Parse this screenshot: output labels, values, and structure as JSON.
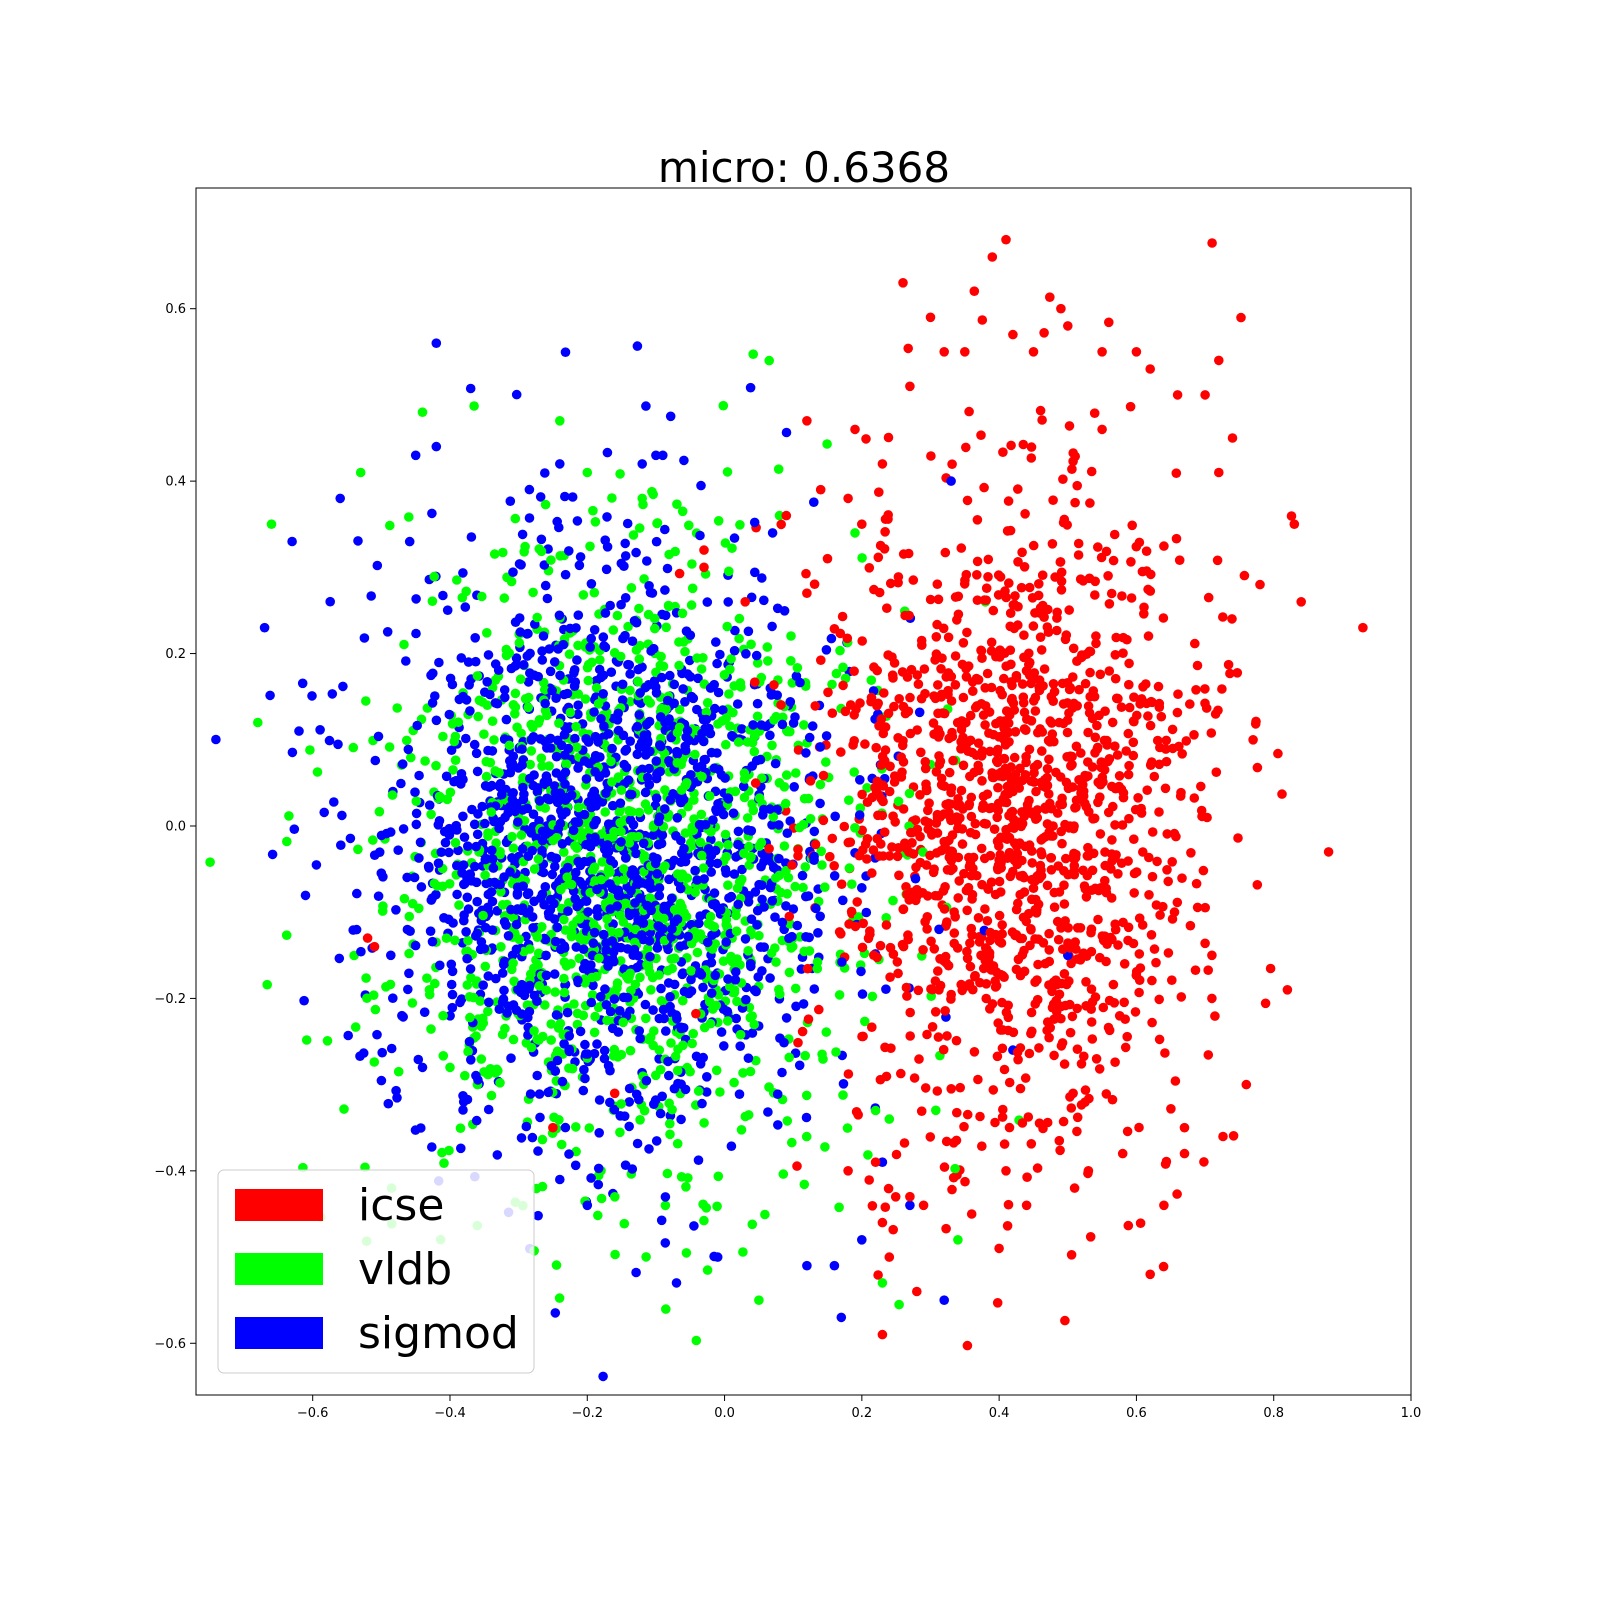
{
  "chart_data": {
    "type": "scatter",
    "title": "micro: 0.6368",
    "xlabel": "",
    "ylabel": "",
    "xlim": [
      -0.77,
      1.0
    ],
    "ylim": [
      -0.66,
      0.74
    ],
    "xticks": [
      -0.6,
      -0.4,
      -0.2,
      0.0,
      0.2,
      0.4,
      0.6,
      0.8,
      1.0
    ],
    "yticks": [
      -0.6,
      -0.4,
      -0.2,
      0.0,
      0.2,
      0.4,
      0.6
    ],
    "xtick_labels": [
      "−0.6",
      "−0.4",
      "−0.2",
      "0.0",
      "0.2",
      "0.4",
      "0.6",
      "0.8",
      "1.0"
    ],
    "ytick_labels": [
      "−0.6",
      "−0.4",
      "−0.2",
      "0.0",
      "0.2",
      "0.4",
      "0.6"
    ],
    "grid": false,
    "legend_position": "bottom-left",
    "series": [
      {
        "name": "icse",
        "color": "#ff0000",
        "points": [
          [
            0.39,
            0.66
          ],
          [
            0.41,
            0.68
          ],
          [
            0.26,
            0.63
          ],
          [
            0.3,
            0.59
          ],
          [
            0.49,
            0.6
          ],
          [
            0.5,
            0.58
          ],
          [
            0.42,
            0.57
          ],
          [
            0.45,
            0.55
          ],
          [
            0.55,
            0.55
          ],
          [
            0.6,
            0.55
          ],
          [
            0.62,
            0.53
          ],
          [
            0.72,
            0.54
          ],
          [
            0.66,
            0.5
          ],
          [
            0.7,
            0.5
          ],
          [
            0.74,
            0.45
          ],
          [
            0.72,
            0.41
          ],
          [
            0.55,
            0.46
          ],
          [
            0.35,
            0.55
          ],
          [
            0.32,
            0.55
          ],
          [
            0.27,
            0.51
          ],
          [
            0.19,
            0.46
          ],
          [
            0.12,
            0.47
          ],
          [
            0.14,
            0.39
          ],
          [
            0.93,
            0.23
          ],
          [
            0.84,
            0.26
          ],
          [
            0.83,
            0.35
          ],
          [
            0.78,
            0.28
          ],
          [
            0.77,
            0.1
          ],
          [
            0.88,
            -0.03
          ],
          [
            0.82,
            -0.19
          ],
          [
            0.76,
            -0.3
          ],
          [
            0.71,
            -0.15
          ],
          [
            0.71,
            -0.2
          ],
          [
            0.67,
            -0.35
          ],
          [
            0.67,
            -0.38
          ],
          [
            0.64,
            -0.44
          ],
          [
            0.62,
            -0.52
          ],
          [
            0.58,
            -0.38
          ],
          [
            0.53,
            -0.4
          ],
          [
            0.51,
            -0.42
          ],
          [
            0.44,
            -0.44
          ],
          [
            0.41,
            -0.4
          ],
          [
            0.4,
            -0.49
          ],
          [
            0.36,
            -0.45
          ],
          [
            0.29,
            -0.44
          ],
          [
            0.28,
            -0.54
          ],
          [
            0.23,
            -0.59
          ],
          [
            0.23,
            -0.46
          ],
          [
            0.24,
            -0.5
          ],
          [
            0.27,
            -0.43
          ],
          [
            0.22,
            -0.39
          ],
          [
            0.18,
            -0.4
          ],
          [
            -0.52,
            -0.13
          ],
          [
            -0.51,
            -0.14
          ],
          [
            -0.25,
            -0.35
          ],
          [
            -0.16,
            -0.31
          ],
          [
            -0.03,
            0.32
          ],
          [
            -0.03,
            0.3
          ],
          [
            0.03,
            0.26
          ],
          [
            0.12,
            0.27
          ],
          [
            0.15,
            0.31
          ],
          [
            0.09,
            0.36
          ],
          [
            0.18,
            0.38
          ],
          [
            0.2,
            0.35
          ],
          [
            0.23,
            0.42
          ]
        ],
        "cluster": {
          "center": [
            0.42,
            0.02
          ],
          "spread": [
            0.14,
            0.19
          ],
          "count": 1450,
          "seed": 11
        }
      },
      {
        "name": "vldb",
        "color": "#00ff00",
        "points": [
          [
            -0.44,
            0.48
          ],
          [
            -0.24,
            0.47
          ],
          [
            -0.66,
            0.35
          ],
          [
            -0.68,
            0.12
          ],
          [
            -0.53,
            0.41
          ],
          [
            -0.2,
            0.41
          ],
          [
            -0.12,
            0.38
          ],
          [
            0.08,
            0.36
          ],
          [
            0.05,
            -0.55
          ],
          [
            0.23,
            -0.53
          ],
          [
            0.34,
            -0.48
          ],
          [
            -0.43,
            -0.19
          ],
          [
            -0.4,
            -0.28
          ],
          [
            -0.41,
            -0.22
          ],
          [
            -0.36,
            -0.3
          ],
          [
            0.22,
            -0.33
          ],
          [
            0.24,
            -0.34
          ],
          [
            0.19,
            0.34
          ],
          [
            0.38,
            0.26
          ]
        ],
        "cluster": {
          "center": [
            -0.15,
            -0.05
          ],
          "spread": [
            0.17,
            0.18
          ],
          "count": 1350,
          "seed": 23
        }
      },
      {
        "name": "sigmod",
        "color": "#0000ff",
        "points": [
          [
            -0.42,
            0.56
          ],
          [
            -0.45,
            0.43
          ],
          [
            -0.42,
            0.44
          ],
          [
            -0.09,
            0.43
          ],
          [
            -0.1,
            0.43
          ],
          [
            -0.12,
            0.42
          ],
          [
            -0.24,
            0.42
          ],
          [
            -0.67,
            0.23
          ],
          [
            -0.63,
            0.33
          ],
          [
            -0.56,
            0.38
          ],
          [
            -0.62,
            0.11
          ],
          [
            -0.38,
            -0.32
          ],
          [
            -0.44,
            -0.28
          ],
          [
            -0.47,
            -0.22
          ],
          [
            -0.24,
            -0.41
          ],
          [
            -0.2,
            -0.44
          ],
          [
            -0.07,
            -0.53
          ],
          [
            -0.01,
            -0.5
          ],
          [
            0.17,
            -0.57
          ],
          [
            0.16,
            -0.51
          ],
          [
            0.12,
            -0.51
          ],
          [
            0.32,
            -0.55
          ],
          [
            0.27,
            -0.44
          ],
          [
            0.07,
            0.34
          ],
          [
            0.33,
            0.4
          ],
          [
            0.2,
            -0.48
          ],
          [
            0.23,
            -0.39
          ],
          [
            0.42,
            -0.26
          ],
          [
            0.5,
            -0.15
          ]
        ],
        "cluster": {
          "center": [
            -0.17,
            -0.02
          ],
          "spread": [
            0.17,
            0.17
          ],
          "count": 1600,
          "seed": 37
        }
      }
    ]
  }
}
